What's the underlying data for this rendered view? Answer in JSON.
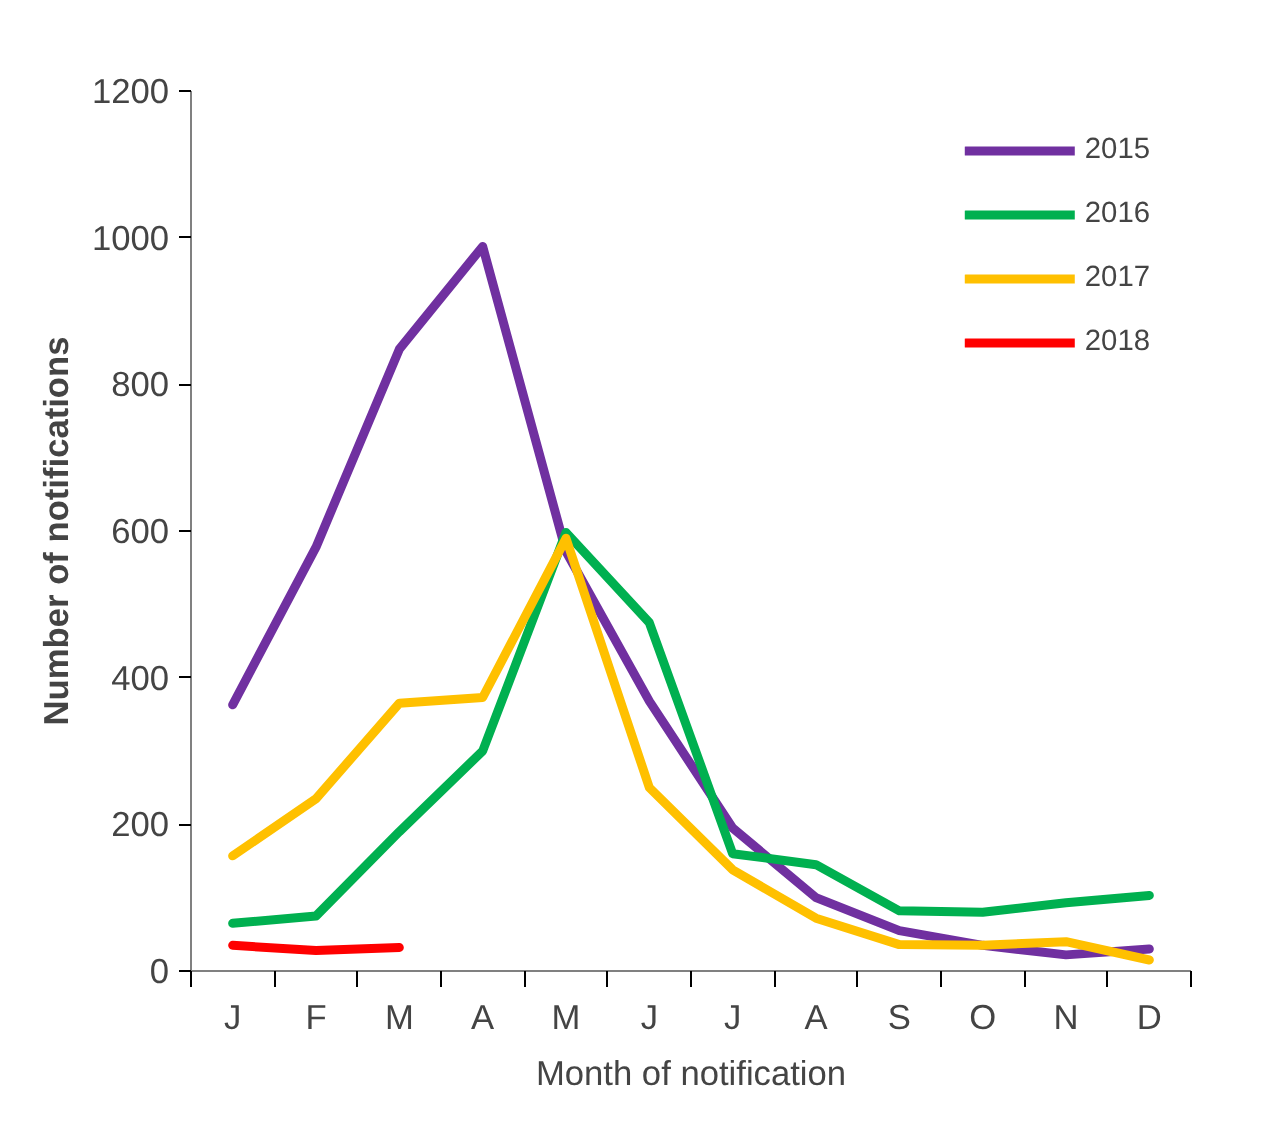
{
  "chart_data": {
    "type": "line",
    "xlabel": "Month of notification",
    "ylabel": "Number of notifications",
    "categories": [
      "J",
      "F",
      "M",
      "A",
      "M",
      "J",
      "J",
      "A",
      "S",
      "O",
      "N",
      "D"
    ],
    "ylim": [
      0,
      1200
    ],
    "yticks": [
      0,
      200,
      400,
      600,
      800,
      1000,
      1200
    ],
    "grid": false,
    "legend": "top right",
    "marker": "none",
    "line_style": "solid",
    "series": [
      {
        "name": "2015",
        "color": "#7030a0",
        "values": [
          363,
          578,
          848,
          988,
          572,
          368,
          195,
          100,
          55,
          35,
          22,
          30
        ]
      },
      {
        "name": "2016",
        "color": "#00b050",
        "values": [
          65,
          75,
          190,
          300,
          598,
          475,
          160,
          145,
          82,
          80,
          93,
          103
        ]
      },
      {
        "name": "2017",
        "color": "#ffc000",
        "values": [
          157,
          235,
          365,
          373,
          590,
          250,
          138,
          72,
          36,
          35,
          40,
          15
        ]
      },
      {
        "name": "2018",
        "color": "#ff0000",
        "values": [
          35,
          28,
          32,
          null,
          null,
          null,
          null,
          null,
          null,
          null,
          null,
          null
        ]
      }
    ]
  }
}
